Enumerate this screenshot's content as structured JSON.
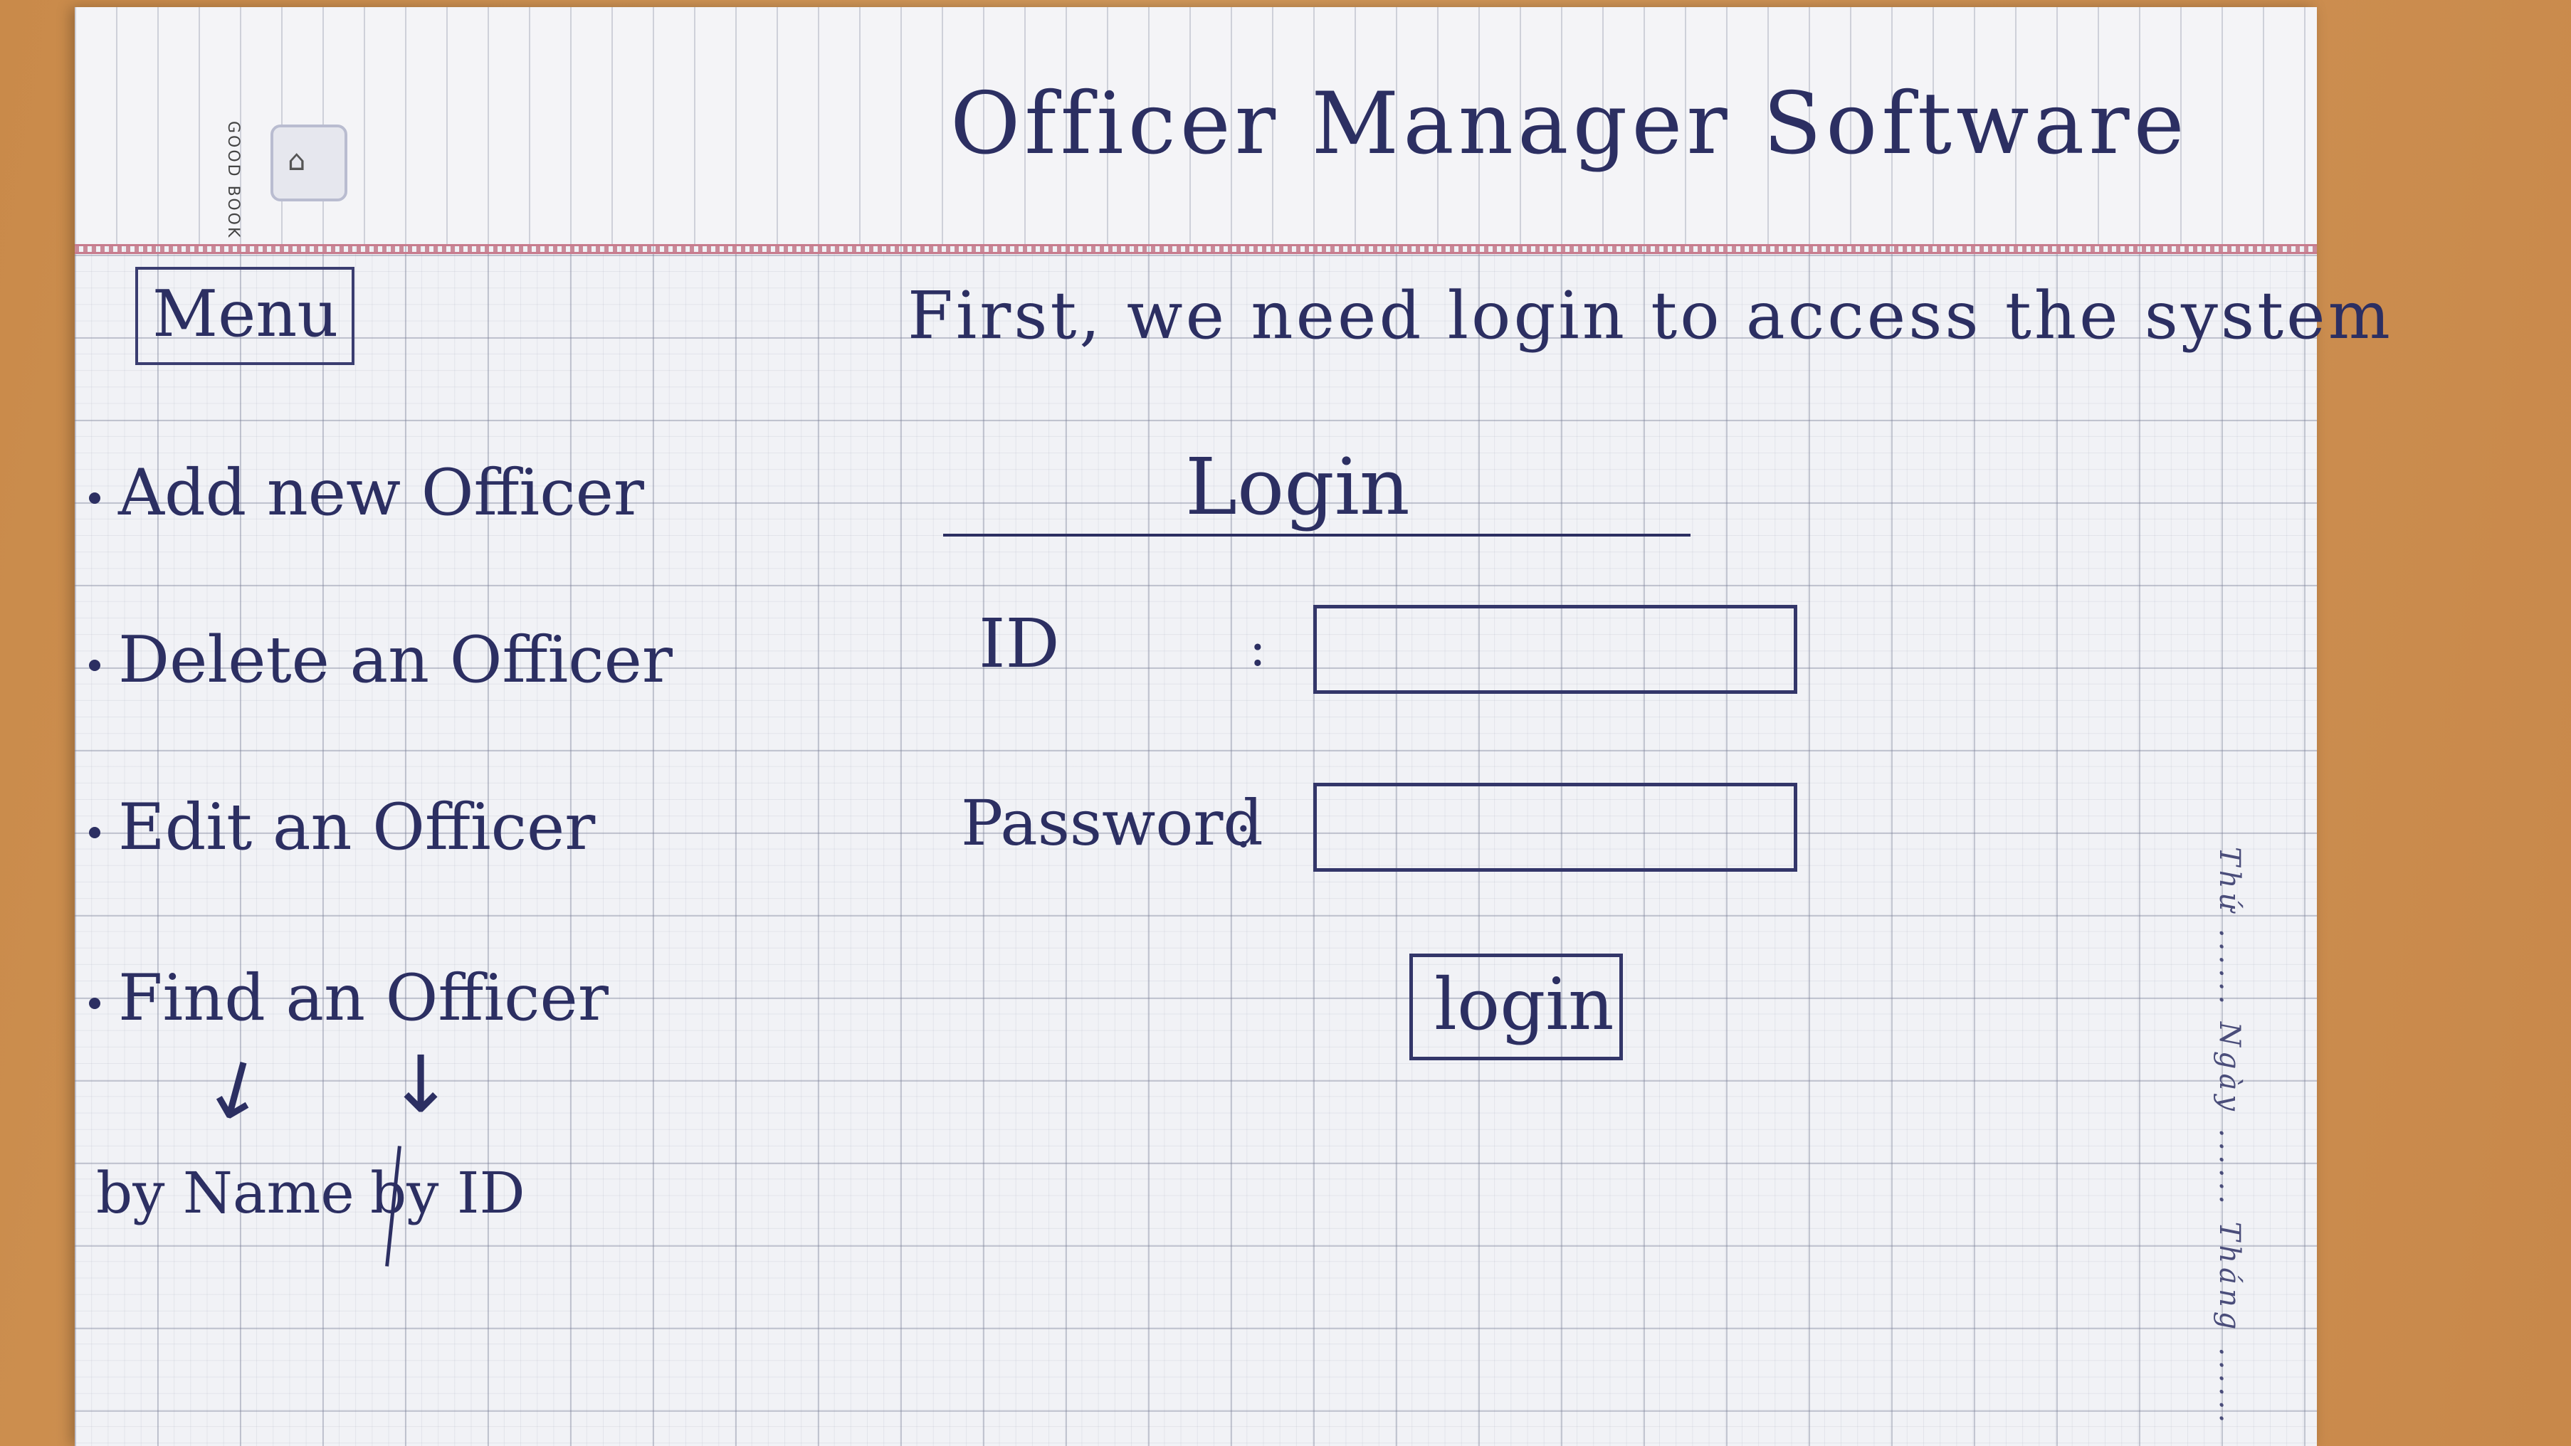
{
  "page": {
    "title": "Officer Manager Software",
    "brand": "GOOD BOOK",
    "side_note": "Thứ ...... Ngày ...... Tháng ...... "
  },
  "menu": {
    "title": "Menu",
    "items": [
      {
        "label": "Add new Officer"
      },
      {
        "label": "Delete an Officer"
      },
      {
        "label": "Edit an Officer"
      },
      {
        "label": "Find an Officer"
      }
    ],
    "find_options": {
      "by_name": "by Name",
      "separator": "/",
      "by_id": "by ID"
    }
  },
  "login": {
    "intro": "First, we need login to access the system",
    "heading": "Login",
    "id_label": "ID",
    "id_value": "",
    "password_label": "Password",
    "password_value": "",
    "colon": ":",
    "button_label": "login"
  }
}
